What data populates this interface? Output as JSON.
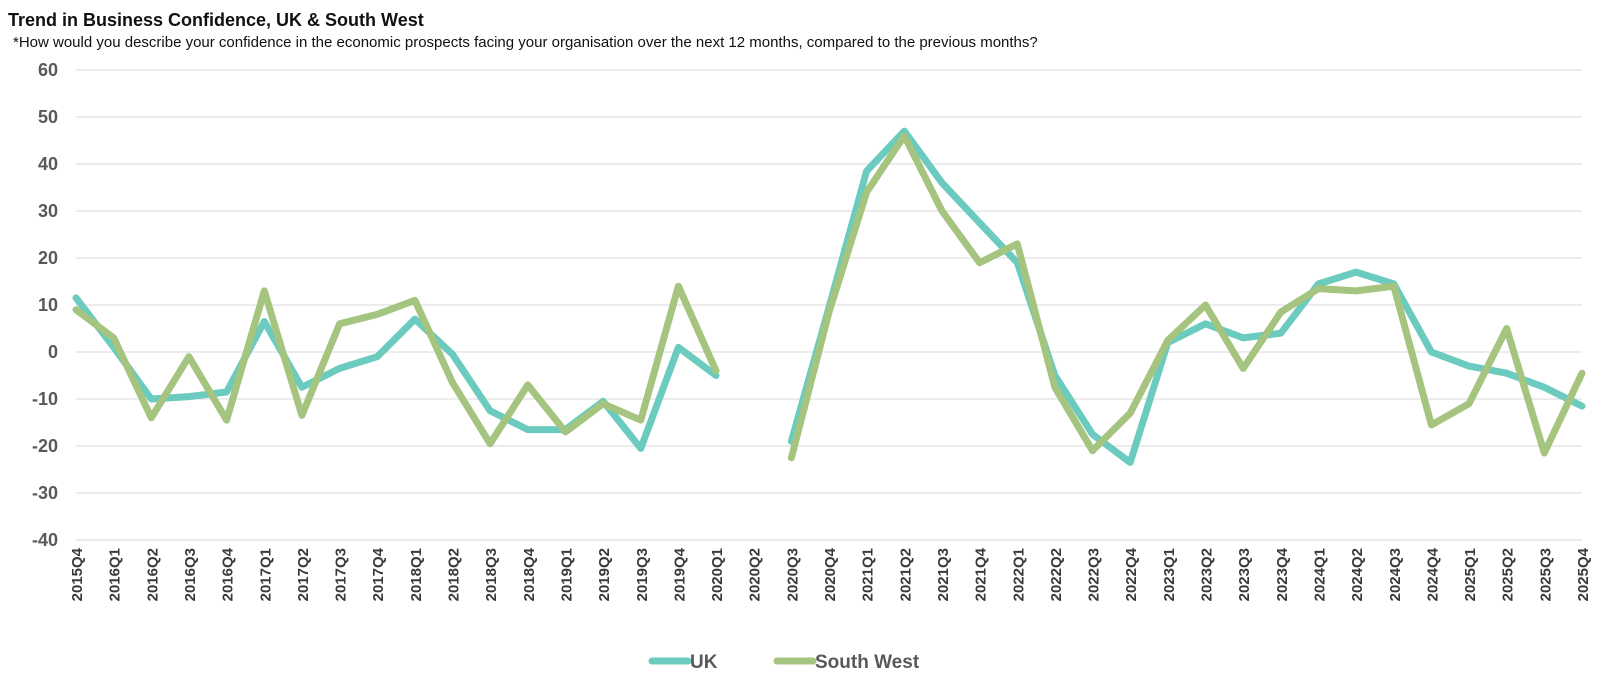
{
  "chart_data": {
    "type": "line",
    "title": "Trend in Business Confidence, UK & South West",
    "subtitle": "*How would you describe your confidence in the economic prospects facing your organisation over the next 12 months, compared to the previous months?",
    "xlabel": "",
    "ylabel": "",
    "ylim": [
      -40,
      60
    ],
    "yticks": [
      60,
      50,
      40,
      30,
      20,
      10,
      0,
      -10,
      -20,
      -30,
      -40
    ],
    "grid": true,
    "legend_position": "bottom",
    "categories": [
      "2015Q4",
      "2016Q1",
      "2016Q2",
      "2016Q3",
      "2016Q4",
      "2017Q1",
      "2017Q2",
      "2017Q3",
      "2017Q4",
      "2018Q1",
      "2018Q2",
      "2018Q3",
      "2018Q4",
      "2019Q1",
      "2019Q2",
      "2019Q3",
      "2019Q4",
      "2020Q1",
      "2020Q2",
      "2020Q3",
      "2020Q4",
      "2021Q1",
      "2021Q2",
      "2021Q3",
      "2021Q4",
      "2022Q1",
      "2022Q2",
      "2022Q3",
      "2022Q4",
      "2023Q1",
      "2023Q2",
      "2023Q3",
      "2023Q4",
      "2024Q1",
      "2024Q2",
      "2024Q3",
      "2024Q4",
      "2025Q1",
      "2025Q2",
      "2025Q3",
      "2025Q4"
    ],
    "series": [
      {
        "name": "UK",
        "color": "#6ccbbf",
        "values": [
          11.5,
          1,
          -10,
          -9.5,
          -8.5,
          6.5,
          -7.5,
          -3.5,
          -1,
          7,
          -0.5,
          -12.5,
          -16.5,
          -16.5,
          -10.5,
          -20.5,
          1,
          -5,
          null,
          -19,
          9.5,
          38.5,
          47,
          36,
          27.5,
          19,
          -5,
          -17.5,
          -23.5,
          2,
          6,
          3,
          4,
          14.5,
          17,
          14.5,
          0,
          -3,
          -4.5,
          -7.5,
          -11.5
        ]
      },
      {
        "name": "South West",
        "color": "#a5c47f",
        "values": [
          9,
          3,
          -14,
          -1,
          -14.5,
          13,
          -13.5,
          6,
          8,
          11,
          -6.5,
          -19.5,
          -7,
          -17,
          -11,
          -14.5,
          14,
          -4,
          null,
          -22.5,
          8.5,
          34,
          46,
          30,
          19,
          23,
          -7.5,
          -21,
          -13,
          2.5,
          10,
          -3.5,
          8.5,
          13.5,
          13,
          14,
          -15.5,
          -11,
          5,
          -21.5,
          -4.5
        ]
      }
    ]
  }
}
